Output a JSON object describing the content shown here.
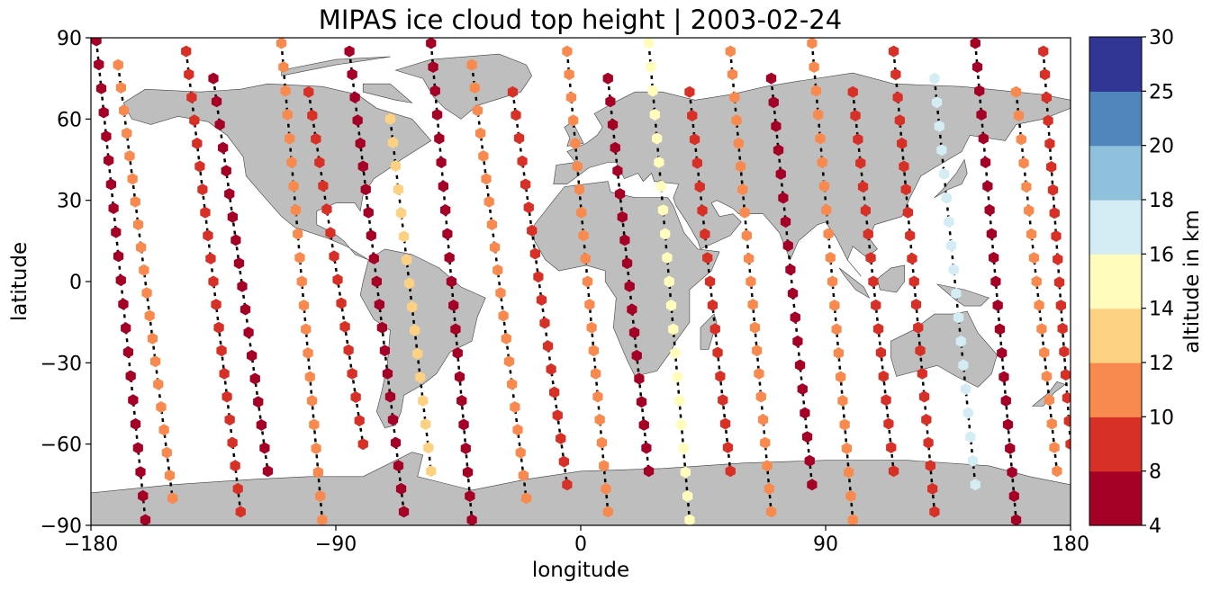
{
  "chart_data": {
    "type": "scatter",
    "title": "MIPAS ice cloud top height | 2003-02-24",
    "xlabel": "longitude",
    "ylabel": "latitude",
    "xlim": [
      -180,
      180
    ],
    "ylim": [
      -90,
      90
    ],
    "x_ticks": [
      -180,
      -90,
      0,
      90,
      180
    ],
    "x_tick_labels": [
      "−180",
      "−90",
      "0",
      "90",
      "180"
    ],
    "y_ticks": [
      -90,
      -60,
      -30,
      0,
      30,
      60,
      90
    ],
    "y_tick_labels": [
      "−90",
      "−60",
      "−30",
      "0",
      "30",
      "60",
      "90"
    ],
    "grid": false,
    "marker": "hexagon",
    "colors": {
      "land": "#bebebe",
      "coastline": "#404040",
      "track": "#000000",
      "axes": "#000000",
      "background": "#ffffff"
    },
    "colorbar": {
      "label": "altitude in km",
      "boundaries": [
        4,
        8,
        10,
        12,
        14,
        16,
        18,
        20,
        25,
        30
      ],
      "tick_labels": [
        "4",
        "8",
        "10",
        "12",
        "14",
        "16",
        "18",
        "20",
        "25",
        "30"
      ],
      "colors": [
        "#a50026",
        "#d73027",
        "#f46d43",
        "#fdae61",
        "#fee090",
        "#ffffbf",
        "#e0f3f8",
        "#abd9e9",
        "#74add1",
        "#4575b4",
        "#313695"
      ],
      "bin_colors": [
        "#a50026",
        "#d73027",
        "#f88a4f",
        "#fdd182",
        "#fffcbc",
        "#d4ecf4",
        "#8fc1dd",
        "#4f85bb",
        "#313695"
      ]
    },
    "orbits": [
      {
        "lon_start": -178,
        "lat_start": 89,
        "lon_end": -160,
        "lat_end": -88,
        "alt": 7
      },
      {
        "lon_start": -170,
        "lat_start": 80,
        "lon_end": -150,
        "lat_end": -80,
        "alt": 11
      },
      {
        "lon_start": -145,
        "lat_start": 85,
        "lon_end": -125,
        "lat_end": -85,
        "alt": 9
      },
      {
        "lon_start": -135,
        "lat_start": 75,
        "lon_end": -115,
        "lat_end": -70,
        "alt": 7
      },
      {
        "lon_start": -110,
        "lat_start": 88,
        "lon_end": -95,
        "lat_end": -88,
        "alt": 10
      },
      {
        "lon_start": -100,
        "lat_start": 70,
        "lon_end": -80,
        "lat_end": -60,
        "alt": 8
      },
      {
        "lon_start": -85,
        "lat_start": 85,
        "lon_end": -65,
        "lat_end": -85,
        "alt": 7
      },
      {
        "lon_start": -70,
        "lat_start": 60,
        "lon_end": -55,
        "lat_end": -70,
        "alt": 12
      },
      {
        "lon_start": -55,
        "lat_start": 88,
        "lon_end": -40,
        "lat_end": -88,
        "alt": 7
      },
      {
        "lon_start": -40,
        "lat_start": 80,
        "lon_end": -20,
        "lat_end": -80,
        "alt": 10
      },
      {
        "lon_start": -25,
        "lat_start": 70,
        "lon_end": -5,
        "lat_end": -75,
        "alt": 9
      },
      {
        "lon_start": -5,
        "lat_start": 85,
        "lon_end": 10,
        "lat_end": -85,
        "alt": 11
      },
      {
        "lon_start": 10,
        "lat_start": 75,
        "lon_end": 25,
        "lat_end": -70,
        "alt": 7
      },
      {
        "lon_start": 25,
        "lat_start": 88,
        "lon_end": 40,
        "lat_end": -88,
        "alt": 15
      },
      {
        "lon_start": 40,
        "lat_start": 70,
        "lon_end": 55,
        "lat_end": -70,
        "alt": 8
      },
      {
        "lon_start": 55,
        "lat_start": 85,
        "lon_end": 70,
        "lat_end": -85,
        "alt": 10
      },
      {
        "lon_start": 70,
        "lat_start": 75,
        "lon_end": 85,
        "lat_end": -75,
        "alt": 7
      },
      {
        "lon_start": 85,
        "lat_start": 88,
        "lon_end": 100,
        "lat_end": -88,
        "alt": 11
      },
      {
        "lon_start": 100,
        "lat_start": 70,
        "lon_end": 115,
        "lat_end": -70,
        "alt": 8
      },
      {
        "lon_start": 115,
        "lat_start": 85,
        "lon_end": 130,
        "lat_end": -85,
        "alt": 9
      },
      {
        "lon_start": 130,
        "lat_start": 75,
        "lon_end": 145,
        "lat_end": -75,
        "alt": 16
      },
      {
        "lon_start": 145,
        "lat_start": 88,
        "lon_end": 160,
        "lat_end": -88,
        "alt": 7
      },
      {
        "lon_start": 160,
        "lat_start": 70,
        "lon_end": 175,
        "lat_end": -70,
        "alt": 10
      },
      {
        "lon_start": 170,
        "lat_start": 85,
        "lon_end": 180,
        "lat_end": -60,
        "alt": 8
      }
    ]
  }
}
